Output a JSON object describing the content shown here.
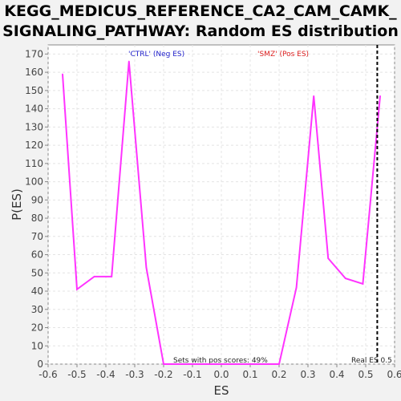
{
  "chart_data": {
    "type": "line",
    "title": "KEGG_MEDICUS_REFERENCE_CA2_CAM_CAMK_ SIGNALING_PATHWAY: Random ES distribution",
    "title_lines": [
      "KEGG_MEDICUS_REFERENCE_CA2_CAM_CAMK_",
      "SIGNALING_PATHWAY: Random ES distribution"
    ],
    "xlabel": "ES",
    "ylabel": "P(ES)",
    "xlim": [
      -0.6,
      0.6
    ],
    "ylim": [
      0,
      175
    ],
    "xticks": [
      "-0.6",
      "-0.5",
      "-0.4",
      "-0.3",
      "-0.2",
      "-0.1",
      "0.0",
      "0.1",
      "0.2",
      "0.3",
      "0.4",
      "0.5",
      "0.6"
    ],
    "yticks": [
      "0",
      "10",
      "20",
      "30",
      "40",
      "50",
      "60",
      "70",
      "80",
      "90",
      "100",
      "110",
      "120",
      "130",
      "140",
      "150",
      "160",
      "170"
    ],
    "grid": true,
    "series": [
      {
        "color": "#ff33ff",
        "x": [
          -0.55,
          -0.5,
          -0.44,
          -0.38,
          -0.32,
          -0.26,
          -0.2,
          -0.14,
          -0.08,
          -0.02,
          0.04,
          0.1,
          0.15,
          0.2,
          0.26,
          0.32,
          0.37,
          0.43,
          0.49,
          0.55
        ],
        "y": [
          159,
          41,
          48,
          48,
          166,
          53,
          0,
          0,
          0,
          0,
          0,
          0,
          0,
          0,
          42,
          147,
          58,
          47,
          44,
          147
        ]
      }
    ],
    "real_es": 0.54,
    "annotations": {
      "neg_label": "'CTRL' (Neg ES)",
      "pos_label": "'SMZ' (Pos ES)",
      "pos_scores": "Sets with pos scores: 49%",
      "real_es_label": "Real ES 0.5"
    },
    "colors": {
      "neg": "#2222cc",
      "pos": "#dd2222",
      "line": "#ff33ff",
      "real_es_line": "#000000"
    }
  }
}
